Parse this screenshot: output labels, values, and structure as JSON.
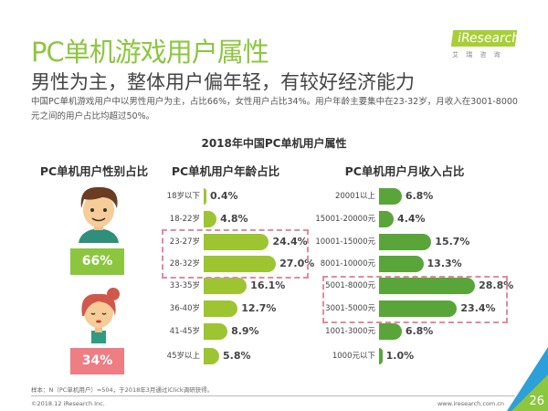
{
  "header": {
    "title": "PC单机游戏用户属性",
    "subtitle": "男性为主，整体用户偏年轻，有较好经济能力",
    "description": "中国PC单机游戏用户中以男性用户为主，占比66%，女性用户占比34%。用户年龄主要集中在23-32岁，月收入在3001-8000元之间的用户占比均超过50%。"
  },
  "logo": {
    "text": "iResearch",
    "subtext": "艾 瑞 咨 询"
  },
  "chart_title": "2018年中国PC单机用户属性",
  "colors": {
    "title": "#8dc63f",
    "male": "#8cc63f",
    "female": "#ee7d84",
    "age_bar": "#9dc532",
    "income_bar": "#5aa53a",
    "highlight": "#e48a9b"
  },
  "gender": {
    "title": "PC单机用户性别占比",
    "male_pct": "66%",
    "female_pct": "34%"
  },
  "chart_data": [
    {
      "type": "bar",
      "orientation": "horizontal",
      "title": "PC单机用户年龄占比",
      "categories": [
        "18岁以下",
        "18-22岁",
        "23-27岁",
        "28-32岁",
        "33-35岁",
        "36-40岁",
        "41-45岁",
        "45岁以上"
      ],
      "values": [
        0.4,
        4.8,
        24.4,
        27.0,
        16.1,
        12.7,
        8.9,
        5.8
      ],
      "labels": [
        "0.4%",
        "4.8%",
        "24.4%",
        "27.0%",
        "16.1%",
        "12.7%",
        "8.9%",
        "5.8%"
      ],
      "highlighted": [
        "23-27岁",
        "28-32岁"
      ]
    },
    {
      "type": "bar",
      "orientation": "horizontal",
      "title": "PC单机用户月收入占比",
      "categories": [
        "20001以上",
        "15001-20000元",
        "10001-15000元",
        "8001-10000元",
        "5001-8000元",
        "3001-5000元",
        "1001-3000元",
        "1000元以下"
      ],
      "values": [
        6.8,
        4.4,
        15.7,
        13.3,
        28.8,
        23.4,
        6.8,
        1.0
      ],
      "labels": [
        "6.8%",
        "4.4%",
        "15.7%",
        "13.3%",
        "28.8%",
        "23.4%",
        "6.8%",
        "1.0%"
      ],
      "highlighted": [
        "5001-8000元",
        "3001-5000元"
      ]
    }
  ],
  "footer": {
    "note": "样本：N（PC单机用户）=504，于2018年3月通过iClick调研获得。",
    "copyright": "©2018.12 iResearch Inc.",
    "site": "www.iresearch.com.cn",
    "page": "26"
  }
}
